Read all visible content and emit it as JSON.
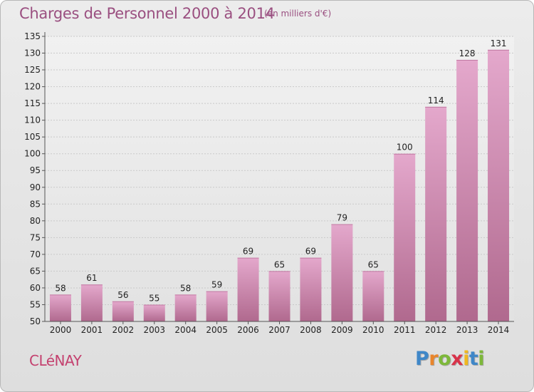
{
  "header": {
    "title": "Charges de Personnel 2000 à 2014",
    "subtitle": "(en milliers d'€)"
  },
  "footer": {
    "commune": "CLéNAY",
    "brand": "Proxiti"
  },
  "colors": {
    "bar_top": "#e4a8cc",
    "bar_bottom": "#b0698e",
    "title": "#9a4f80",
    "commune": "#c4416f"
  },
  "chart_data": {
    "type": "bar",
    "title": "Charges de Personnel 2000 à 2014",
    "subtitle": "(en milliers d'€)",
    "xlabel": "",
    "ylabel": "",
    "categories": [
      "2000",
      "2001",
      "2002",
      "2003",
      "2004",
      "2005",
      "2006",
      "2007",
      "2008",
      "2009",
      "2010",
      "2011",
      "2012",
      "2013",
      "2014"
    ],
    "values": [
      58,
      61,
      56,
      55,
      58,
      59,
      69,
      65,
      69,
      79,
      65,
      100,
      114,
      128,
      131
    ],
    "ylim": [
      50,
      135
    ],
    "yticks": [
      50,
      55,
      60,
      65,
      70,
      75,
      80,
      85,
      90,
      95,
      100,
      105,
      110,
      115,
      120,
      125,
      130,
      135
    ],
    "grid": true,
    "legend": "none"
  }
}
